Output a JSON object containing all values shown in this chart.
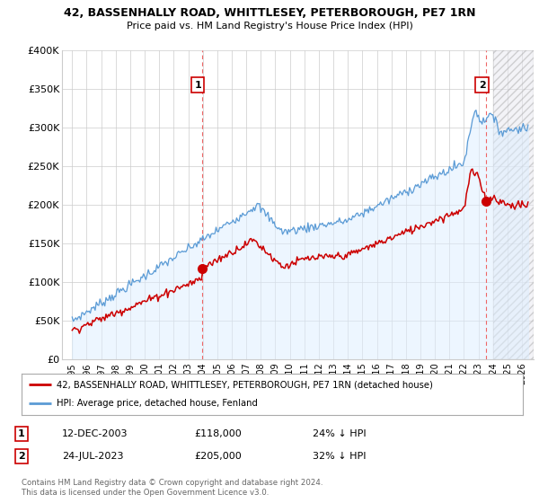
{
  "title": "42, BASSENHALLY ROAD, WHITTLESEY, PETERBOROUGH, PE7 1RN",
  "subtitle": "Price paid vs. HM Land Registry's House Price Index (HPI)",
  "legend_line1": "42, BASSENHALLY ROAD, WHITTLESEY, PETERBOROUGH, PE7 1RN (detached house)",
  "legend_line2": "HPI: Average price, detached house, Fenland",
  "annotation1_date": "12-DEC-2003",
  "annotation1_price": "£118,000",
  "annotation1_hpi": "24% ↓ HPI",
  "annotation2_date": "24-JUL-2023",
  "annotation2_price": "£205,000",
  "annotation2_hpi": "32% ↓ HPI",
  "footer": "Contains HM Land Registry data © Crown copyright and database right 2024.\nThis data is licensed under the Open Government Licence v3.0.",
  "red_color": "#cc0000",
  "blue_color": "#5b9bd5",
  "blue_fill": "#ddeeff",
  "vline_color": "#ee6666",
  "grid_color": "#cccccc",
  "background_color": "#ffffff",
  "ylim": [
    0,
    400000
  ],
  "yticks": [
    0,
    50000,
    100000,
    150000,
    200000,
    250000,
    300000,
    350000,
    400000
  ],
  "sale1_x": 2003.96,
  "sale1_y": 118000,
  "sale2_x": 2023.55,
  "sale2_y": 205000,
  "hatch_start": 2024.0,
  "xlim_left": 1994.3,
  "xlim_right": 2026.8
}
